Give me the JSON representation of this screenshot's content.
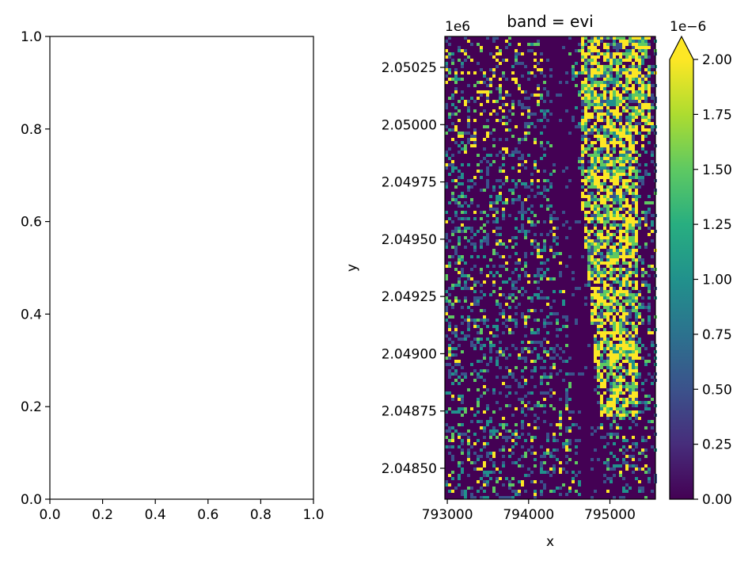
{
  "chart_data": [
    {
      "type": "line",
      "title": "",
      "xlabel": "",
      "ylabel": "",
      "xlim": [
        0.0,
        1.0
      ],
      "ylim": [
        0.0,
        1.0
      ],
      "x_ticks": [
        "0.0",
        "0.2",
        "0.4",
        "0.6",
        "0.8",
        "1.0"
      ],
      "y_ticks": [
        "0.0",
        "0.2",
        "0.4",
        "0.6",
        "0.8",
        "1.0"
      ],
      "series": []
    },
    {
      "type": "heatmap",
      "title": "band = evi",
      "xlabel": "x",
      "ylabel": "y",
      "xlim": [
        792970,
        795560
      ],
      "ylim": [
        2048365,
        2050385
      ],
      "x_ticks": [
        "793000",
        "794000",
        "795000"
      ],
      "x_tick_values": [
        793000,
        794000,
        795000
      ],
      "y_ticks": [
        "2.04850",
        "2.04875",
        "2.04900",
        "2.04925",
        "2.04950",
        "2.04975",
        "2.05000",
        "2.05025"
      ],
      "y_tick_values": [
        2048500,
        2048750,
        2049000,
        2049250,
        2049500,
        2049750,
        2050000,
        2050250
      ],
      "y_offset_text": "1e6",
      "colormap": "viridis",
      "colorbar": {
        "range": [
          0.0,
          2.0
        ],
        "ticks": [
          "0.00",
          "0.25",
          "0.50",
          "0.75",
          "1.00",
          "1.25",
          "1.50",
          "1.75",
          "2.00"
        ],
        "tick_values": [
          0.0,
          0.25,
          0.5,
          0.75,
          1.0,
          1.25,
          1.5,
          1.75,
          2.0
        ],
        "offset_text": "1e−6",
        "extend": "max"
      },
      "colors": [
        "#440154",
        "#3b528b",
        "#21918c",
        "#5ec962",
        "#fde725"
      ]
    }
  ]
}
